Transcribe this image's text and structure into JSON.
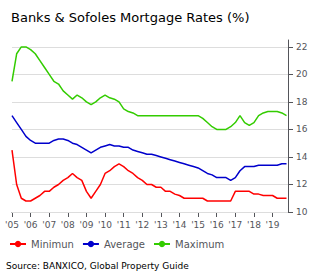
{
  "chart_data": {
    "type": "line",
    "title": "Banks & Sofoles Mortgage Rates (%)",
    "annotation": "Source: BANXICO, Global Property Guide",
    "x": [
      2005.0,
      2005.25,
      2005.5,
      2005.75,
      2006.0,
      2006.25,
      2006.5,
      2006.75,
      2007.0,
      2007.25,
      2007.5,
      2007.75,
      2008.0,
      2008.25,
      2008.5,
      2008.75,
      2009.0,
      2009.25,
      2009.5,
      2009.75,
      2010.0,
      2010.25,
      2010.5,
      2010.75,
      2011.0,
      2011.25,
      2011.5,
      2011.75,
      2012.0,
      2012.25,
      2012.5,
      2012.75,
      2013.0,
      2013.25,
      2013.5,
      2013.75,
      2014.0,
      2014.25,
      2014.5,
      2014.75,
      2015.0,
      2015.25,
      2015.5,
      2015.75,
      2016.0,
      2016.25,
      2016.5,
      2016.75,
      2017.0,
      2017.25,
      2017.5,
      2017.75,
      2018.0,
      2018.25,
      2018.5,
      2018.75,
      2019.0,
      2019.25,
      2019.5,
      2019.75
    ],
    "series": [
      {
        "name": "Minimun",
        "color": "#ff0000",
        "values": [
          14.5,
          12.0,
          11.0,
          10.8,
          10.8,
          11.0,
          11.2,
          11.5,
          11.5,
          11.8,
          12.0,
          12.3,
          12.5,
          12.8,
          12.5,
          12.3,
          11.5,
          11.0,
          11.5,
          12.0,
          12.8,
          13.0,
          13.3,
          13.5,
          13.3,
          13.0,
          12.8,
          12.5,
          12.3,
          12.0,
          12.0,
          11.8,
          11.8,
          11.5,
          11.5,
          11.3,
          11.2,
          11.0,
          11.0,
          11.0,
          11.0,
          11.0,
          10.8,
          10.8,
          10.8,
          10.8,
          10.8,
          10.8,
          11.5,
          11.5,
          11.5,
          11.5,
          11.3,
          11.3,
          11.2,
          11.2,
          11.2,
          11.0,
          11.0,
          11.0
        ]
      },
      {
        "name": "Average",
        "color": "#0000cc",
        "values": [
          17.0,
          16.5,
          16.0,
          15.5,
          15.2,
          15.0,
          15.0,
          15.0,
          15.0,
          15.2,
          15.3,
          15.3,
          15.2,
          15.0,
          14.9,
          14.7,
          14.5,
          14.3,
          14.5,
          14.7,
          14.8,
          14.9,
          14.8,
          14.8,
          14.7,
          14.7,
          14.5,
          14.4,
          14.3,
          14.2,
          14.2,
          14.1,
          14.0,
          13.9,
          13.8,
          13.7,
          13.6,
          13.5,
          13.4,
          13.3,
          13.2,
          13.0,
          12.8,
          12.7,
          12.5,
          12.5,
          12.5,
          12.3,
          12.5,
          13.0,
          13.3,
          13.3,
          13.3,
          13.4,
          13.4,
          13.4,
          13.4,
          13.4,
          13.5,
          13.5
        ]
      },
      {
        "name": "Maximum",
        "color": "#33cc00",
        "values": [
          19.5,
          21.5,
          22.0,
          22.0,
          21.8,
          21.5,
          21.0,
          20.5,
          20.0,
          19.5,
          19.3,
          18.8,
          18.5,
          18.2,
          18.5,
          18.3,
          18.0,
          17.8,
          18.0,
          18.3,
          18.5,
          18.3,
          18.2,
          18.0,
          17.5,
          17.3,
          17.2,
          17.0,
          17.0,
          17.0,
          17.0,
          17.0,
          17.0,
          17.0,
          17.0,
          17.0,
          17.0,
          17.0,
          17.0,
          17.0,
          17.0,
          16.8,
          16.5,
          16.2,
          16.0,
          16.0,
          16.0,
          16.2,
          16.5,
          17.0,
          16.5,
          16.3,
          16.5,
          17.0,
          17.2,
          17.3,
          17.3,
          17.3,
          17.2,
          17.0
        ]
      }
    ],
    "xlim": [
      2005.0,
      2019.83
    ],
    "xticks": [
      {
        "value": 2005,
        "label": "'05"
      },
      {
        "value": 2006,
        "label": "'06"
      },
      {
        "value": 2007,
        "label": "'07"
      },
      {
        "value": 2008,
        "label": "'08"
      },
      {
        "value": 2009,
        "label": "'09"
      },
      {
        "value": 2010,
        "label": "'10"
      },
      {
        "value": 2011,
        "label": "'11"
      },
      {
        "value": 2012,
        "label": "'12"
      },
      {
        "value": 2013,
        "label": "'13"
      },
      {
        "value": 2014,
        "label": "'14"
      },
      {
        "value": 2015,
        "label": "'15"
      },
      {
        "value": 2016,
        "label": "'16"
      },
      {
        "value": 2017,
        "label": "'17"
      },
      {
        "value": 2018,
        "label": "'18"
      },
      {
        "value": 2019,
        "label": "'19"
      }
    ],
    "ylim": [
      10,
      22.5
    ],
    "yticks": [
      10,
      12,
      14,
      16,
      18,
      20,
      22
    ],
    "grid": true,
    "legend": "lower left"
  }
}
